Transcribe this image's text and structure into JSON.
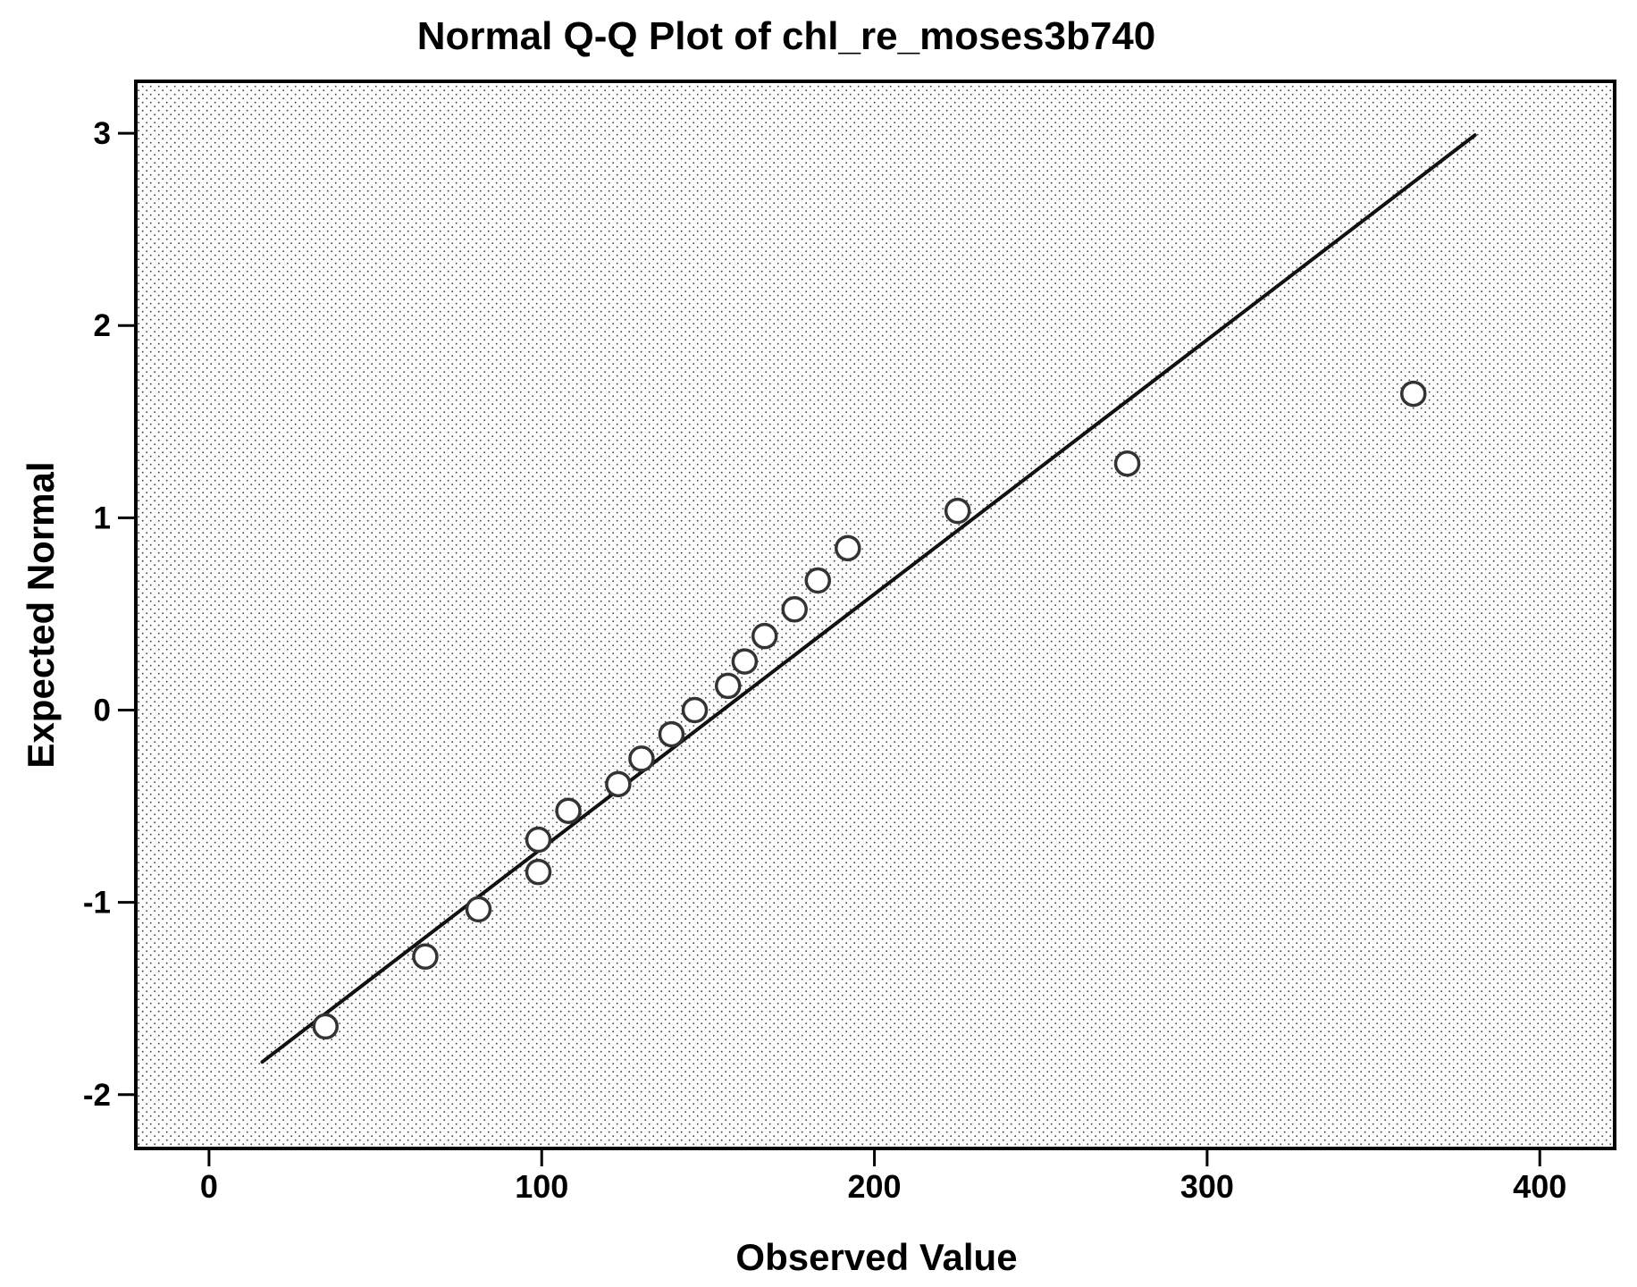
{
  "chart_data": {
    "type": "scatter",
    "variant": "normal-qq-plot",
    "title": "Normal Q-Q Plot of chl_re_moses3b740",
    "xlabel": "Observed Value",
    "ylabel": "Expected Normal",
    "x_ticks": [
      0,
      100,
      200,
      300,
      400
    ],
    "y_ticks": [
      3,
      2,
      1,
      0,
      -1,
      -2
    ],
    "x_range": [
      -22,
      422.5
    ],
    "y_range": [
      -2.28,
      3.27
    ],
    "grid": false,
    "legend": false,
    "points": [
      {
        "observed": 35,
        "expected": -1.645
      },
      {
        "observed": 65,
        "expected": -1.282
      },
      {
        "observed": 81,
        "expected": -1.036
      },
      {
        "observed": 99,
        "expected": -0.842
      },
      {
        "observed": 99,
        "expected": -0.674
      },
      {
        "observed": 108,
        "expected": -0.524
      },
      {
        "observed": 123,
        "expected": -0.385
      },
      {
        "observed": 130,
        "expected": -0.253
      },
      {
        "observed": 139,
        "expected": -0.126
      },
      {
        "observed": 146,
        "expected": 0
      },
      {
        "observed": 156,
        "expected": 0.126
      },
      {
        "observed": 161,
        "expected": 0.253
      },
      {
        "observed": 167,
        "expected": 0.385
      },
      {
        "observed": 176,
        "expected": 0.524
      },
      {
        "observed": 183,
        "expected": 0.674
      },
      {
        "observed": 192,
        "expected": 0.842
      },
      {
        "observed": 225,
        "expected": 1.036
      },
      {
        "observed": 276,
        "expected": 1.282
      },
      {
        "observed": 362,
        "expected": 1.645
      }
    ],
    "reference_line": {
      "x1": 16,
      "y1": -1.83,
      "x2": 380.5,
      "y2": 2.99
    },
    "colors": {
      "frame": "#000000",
      "line": "#111111",
      "marker_stroke": "#333333",
      "marker_fill": "#ffffff",
      "text": "#000000",
      "plot_bg": "#fdfdfd",
      "plot_dot": "#3f3f3f",
      "page_bg": "#ffffff"
    }
  }
}
